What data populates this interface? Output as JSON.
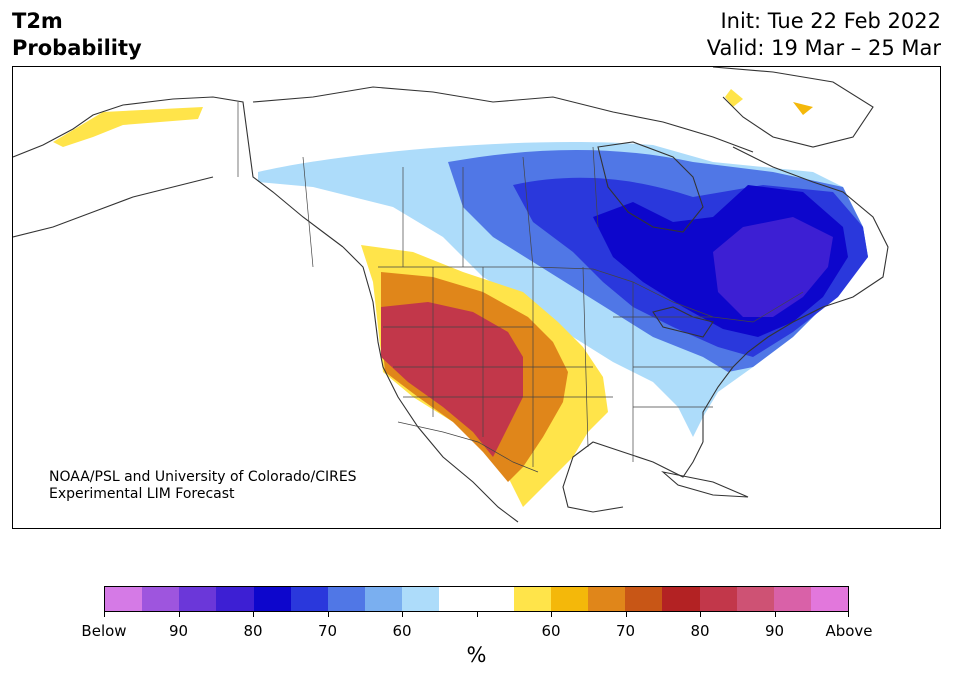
{
  "title": {
    "variable": "T2m",
    "product": "Probability"
  },
  "dates": {
    "init": "Init: Tue 22 Feb 2022",
    "valid": "Valid: 19 Mar – 25 Mar"
  },
  "credit": {
    "line1": "NOAA/PSL and University of Colorado/CIRES",
    "line2": "Experimental LIM Forecast"
  },
  "colorbar": {
    "unit": "%",
    "colors": [
      "#d57ae6",
      "#9e55de",
      "#6b37d9",
      "#3d1fd3",
      "#0d06cc",
      "#2a38dc",
      "#5077e6",
      "#7aaff0",
      "#addcfa",
      "#ffffff",
      "#ffffff",
      "#ffe44a",
      "#f4b80a",
      "#e0861a",
      "#c85616",
      "#b32223",
      "#c2374a",
      "#ce5274",
      "#d961a8",
      "#e277dc"
    ],
    "tick_labels": [
      "Below",
      "90",
      "80",
      "70",
      "60",
      "",
      "60",
      "70",
      "80",
      "90",
      "Above"
    ]
  },
  "map": {
    "colors": {
      "land_outline": "#333333",
      "below_60": "#addcfa",
      "below_70": "#5077e6",
      "below_80": "#2a38dc",
      "below_90": "#3d1fd3",
      "above_60": "#ffe44a",
      "above_70": "#e0861a",
      "above_80": "#c2374a"
    }
  }
}
